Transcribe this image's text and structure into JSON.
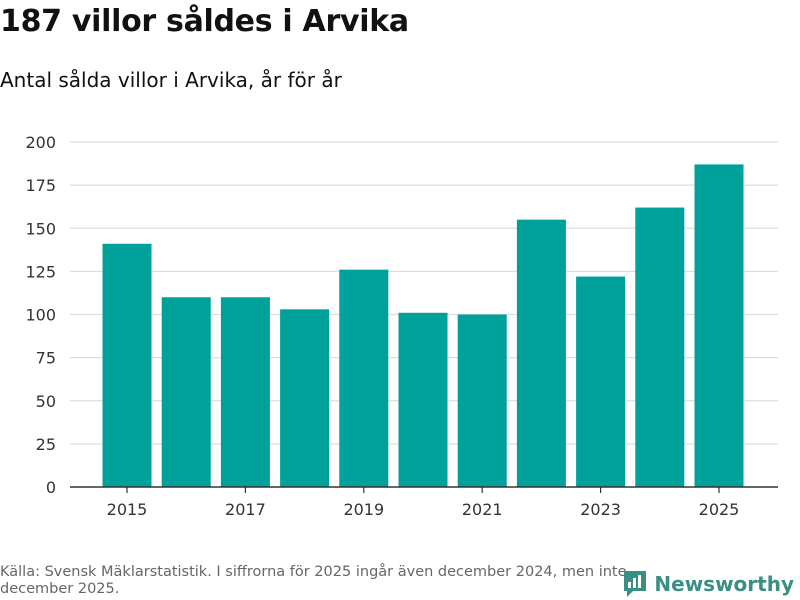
{
  "header": {
    "title": "187 villor såldes i Arvika",
    "subtitle": "Antal sålda villor i Arvika, år för år"
  },
  "chart_data": {
    "type": "bar",
    "title": "187 villor såldes i Arvika",
    "subtitle": "Antal sålda villor i Arvika, år för år",
    "categories": [
      "2015",
      "2016",
      "2017",
      "2018",
      "2019",
      "2020",
      "2021",
      "2022",
      "2023",
      "2024",
      "2025"
    ],
    "values": [
      141,
      110,
      110,
      103,
      126,
      101,
      100,
      155,
      122,
      162,
      187
    ],
    "x_tick_labels": [
      "2015",
      "2017",
      "2019",
      "2021",
      "2023",
      "2025"
    ],
    "y_ticks": [
      0,
      25,
      50,
      75,
      100,
      125,
      150,
      175,
      200
    ],
    "ylim": [
      0,
      200
    ],
    "xlabel": "",
    "ylabel": "",
    "grid": true,
    "bar_color": "#00a19a"
  },
  "footer": {
    "source": "Källa: Svensk Mäklarstatistik. I siffrorna för 2025 ingår även december 2024, men inte december 2025."
  },
  "brand": {
    "name": "Newsworthy",
    "logo_icon": "newsworthy-logo-icon",
    "color": "#3a8f84"
  }
}
